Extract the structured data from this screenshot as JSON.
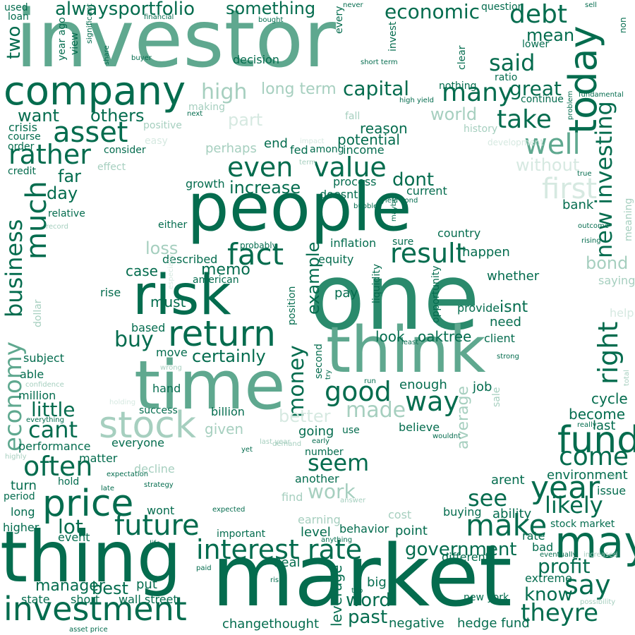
{
  "palette": {
    "dark": "#046c4e",
    "mid": "#2a8a6c",
    "light": "#5fa88f",
    "pale": "#a6cfbf",
    "faint": "#d6e9e1",
    "background": "#ffffff"
  },
  "words": [
    {
      "text": "investor",
      "shade": "light"
    },
    {
      "text": "people",
      "shade": "dark"
    },
    {
      "text": "market",
      "shade": "dark"
    },
    {
      "text": "one",
      "shade": "mid"
    },
    {
      "text": "thing",
      "shade": "dark"
    },
    {
      "text": "time",
      "shade": "light"
    },
    {
      "text": "risk",
      "shade": "dark"
    },
    {
      "text": "think",
      "shade": "light"
    },
    {
      "text": "company",
      "shade": "dark"
    },
    {
      "text": "today",
      "shade": "dark"
    },
    {
      "text": "return",
      "shade": "dark"
    },
    {
      "text": "investment",
      "shade": "dark"
    },
    {
      "text": "price",
      "shade": "dark"
    },
    {
      "text": "stock",
      "shade": "pale"
    },
    {
      "text": "may",
      "shade": "dark"
    },
    {
      "text": "year",
      "shade": "dark"
    },
    {
      "text": "fund",
      "shade": "dark"
    },
    {
      "text": "make",
      "shade": "dark"
    },
    {
      "text": "future",
      "shade": "dark"
    },
    {
      "text": "interest rate",
      "shade": "dark"
    },
    {
      "text": "even",
      "shade": "dark"
    },
    {
      "text": "value",
      "shade": "dark"
    },
    {
      "text": "asset",
      "shade": "dark"
    },
    {
      "text": "rather",
      "shade": "dark"
    },
    {
      "text": "fact",
      "shade": "dark"
    },
    {
      "text": "result",
      "shade": "dark"
    },
    {
      "text": "good",
      "shade": "dark"
    },
    {
      "text": "way",
      "shade": "dark"
    },
    {
      "text": "often",
      "shade": "dark"
    },
    {
      "text": "say",
      "shade": "dark"
    },
    {
      "text": "theyre",
      "shade": "dark"
    },
    {
      "text": "come",
      "shade": "dark"
    },
    {
      "text": "likely",
      "shade": "dark"
    },
    {
      "text": "see",
      "shade": "dark"
    },
    {
      "text": "seem",
      "shade": "dark"
    },
    {
      "text": "many",
      "shade": "dark"
    },
    {
      "text": "take",
      "shade": "dark"
    },
    {
      "text": "well",
      "shade": "light"
    },
    {
      "text": "first",
      "shade": "faint"
    },
    {
      "text": "debt",
      "shade": "dark"
    },
    {
      "text": "said",
      "shade": "dark"
    },
    {
      "text": "high",
      "shade": "pale"
    },
    {
      "text": "capital",
      "shade": "dark"
    },
    {
      "text": "economic",
      "shade": "dark"
    },
    {
      "text": "alwaysportfolio",
      "shade": "dark"
    },
    {
      "text": "something",
      "shade": "dark"
    },
    {
      "text": "much",
      "shade": "dark"
    },
    {
      "text": "business",
      "shade": "dark"
    },
    {
      "text": "economy",
      "shade": "light"
    },
    {
      "text": "new investing",
      "shade": "dark"
    },
    {
      "text": "right",
      "shade": "dark"
    },
    {
      "text": "money",
      "shade": "dark"
    },
    {
      "text": "buy",
      "shade": "dark"
    },
    {
      "text": "certainly",
      "shade": "dark"
    },
    {
      "text": "cant",
      "shade": "dark"
    },
    {
      "text": "little",
      "shade": "dark"
    },
    {
      "text": "lot",
      "shade": "dark"
    },
    {
      "text": "made",
      "shade": "pale"
    },
    {
      "text": "work",
      "shade": "pale"
    },
    {
      "text": "manager",
      "shade": "dark"
    },
    {
      "text": "best",
      "shade": "dark"
    },
    {
      "text": "word",
      "shade": "dark"
    },
    {
      "text": "past",
      "shade": "dark"
    },
    {
      "text": "profit",
      "shade": "dark"
    },
    {
      "text": "know",
      "shade": "dark"
    },
    {
      "text": "government",
      "shade": "dark"
    },
    {
      "text": "increase",
      "shade": "dark"
    },
    {
      "text": "dont",
      "shade": "dark"
    },
    {
      "text": "great",
      "shade": "dark"
    },
    {
      "text": "mean",
      "shade": "dark"
    },
    {
      "text": "want",
      "shade": "dark"
    },
    {
      "text": "others",
      "shade": "dark"
    },
    {
      "text": "far",
      "shade": "dark"
    },
    {
      "text": "day",
      "shade": "dark"
    },
    {
      "text": "two",
      "shade": "dark"
    },
    {
      "text": "case",
      "shade": "dark"
    },
    {
      "text": "memo",
      "shade": "dark"
    },
    {
      "text": "loss",
      "shade": "pale"
    },
    {
      "text": "example",
      "shade": "dark"
    },
    {
      "text": "must",
      "shade": "dark"
    },
    {
      "text": "long term",
      "shade": "pale"
    },
    {
      "text": "part",
      "shade": "faint"
    },
    {
      "text": "world",
      "shade": "pale"
    },
    {
      "text": "without",
      "shade": "faint"
    },
    {
      "text": "reason",
      "shade": "dark"
    },
    {
      "text": "potential",
      "shade": "dark"
    },
    {
      "text": "end",
      "shade": "dark"
    },
    {
      "text": "perhaps",
      "shade": "pale"
    },
    {
      "text": "bond",
      "shade": "pale"
    },
    {
      "text": "bank",
      "shade": "dark"
    },
    {
      "text": "happen",
      "shade": "dark"
    },
    {
      "text": "whether",
      "shade": "dark"
    },
    {
      "text": "isnt",
      "shade": "dark"
    },
    {
      "text": "need",
      "shade": "dark"
    },
    {
      "text": "client",
      "shade": "dark"
    },
    {
      "text": "oaktree",
      "shade": "dark"
    },
    {
      "text": "look",
      "shade": "dark"
    },
    {
      "text": "enough",
      "shade": "dark"
    },
    {
      "text": "job",
      "shade": "dark"
    },
    {
      "text": "average",
      "shade": "pale"
    },
    {
      "text": "cycle",
      "shade": "dark"
    },
    {
      "text": "become",
      "shade": "dark"
    },
    {
      "text": "last",
      "shade": "dark"
    },
    {
      "text": "environment",
      "shade": "dark"
    },
    {
      "text": "arent",
      "shade": "dark"
    },
    {
      "text": "ability",
      "shade": "dark"
    },
    {
      "text": "buying",
      "shade": "dark"
    },
    {
      "text": "point",
      "shade": "dark"
    },
    {
      "text": "rate",
      "shade": "dark"
    },
    {
      "text": "bad",
      "shade": "dark"
    },
    {
      "text": "stock market",
      "shade": "dark"
    },
    {
      "text": "issue",
      "shade": "dark"
    },
    {
      "text": "extreme",
      "shade": "dark"
    },
    {
      "text": "different",
      "shade": "dark"
    },
    {
      "text": "new york",
      "shade": "dark"
    },
    {
      "text": "negative",
      "shade": "dark"
    },
    {
      "text": "hedge fund",
      "shade": "dark"
    },
    {
      "text": "changethought",
      "shade": "dark"
    },
    {
      "text": "leverage",
      "shade": "dark"
    },
    {
      "text": "big",
      "shade": "dark"
    },
    {
      "text": "level",
      "shade": "dark"
    },
    {
      "text": "deal",
      "shade": "dark"
    },
    {
      "text": "important",
      "shade": "dark"
    },
    {
      "text": "put",
      "shade": "dark"
    },
    {
      "text": "wall street",
      "shade": "dark"
    },
    {
      "text": "short",
      "shade": "dark"
    },
    {
      "text": "state",
      "shade": "dark"
    },
    {
      "text": "event",
      "shade": "dark"
    },
    {
      "text": "higher",
      "shade": "dark"
    },
    {
      "text": "long",
      "shade": "dark"
    },
    {
      "text": "period",
      "shade": "dark"
    },
    {
      "text": "turn",
      "shade": "dark"
    },
    {
      "text": "hold",
      "shade": "dark"
    },
    {
      "text": "matter",
      "shade": "dark"
    },
    {
      "text": "performance",
      "shade": "dark"
    },
    {
      "text": "million",
      "shade": "dark"
    },
    {
      "text": "able",
      "shade": "dark"
    },
    {
      "text": "subject",
      "shade": "dark"
    },
    {
      "text": "hand",
      "shade": "dark"
    },
    {
      "text": "move",
      "shade": "dark"
    },
    {
      "text": "based",
      "shade": "dark"
    },
    {
      "text": "wont",
      "shade": "dark"
    },
    {
      "text": "decline",
      "shade": "pale"
    },
    {
      "text": "everyone",
      "shade": "dark"
    },
    {
      "text": "given",
      "shade": "pale"
    },
    {
      "text": "billion",
      "shade": "dark"
    },
    {
      "text": "success",
      "shade": "dark"
    },
    {
      "text": "better",
      "shade": "faint"
    },
    {
      "text": "going",
      "shade": "dark"
    },
    {
      "text": "number",
      "shade": "dark"
    },
    {
      "text": "another",
      "shade": "dark"
    },
    {
      "text": "find",
      "shade": "pale"
    },
    {
      "text": "cost",
      "shade": "pale"
    },
    {
      "text": "believe",
      "shade": "dark"
    },
    {
      "text": "provide",
      "shade": "dark"
    },
    {
      "text": "pay",
      "shade": "dark"
    },
    {
      "text": "equity",
      "shade": "dark"
    },
    {
      "text": "inflation",
      "shade": "dark"
    },
    {
      "text": "country",
      "shade": "dark"
    },
    {
      "text": "described",
      "shade": "dark"
    },
    {
      "text": "american",
      "shade": "dark"
    },
    {
      "text": "position",
      "shade": "dark"
    },
    {
      "text": "second",
      "shade": "dark"
    },
    {
      "text": "opportunity",
      "shade": "dark"
    },
    {
      "text": "liquidity",
      "shade": "dark"
    },
    {
      "text": "current",
      "shade": "dark"
    },
    {
      "text": "doesnt",
      "shade": "dark"
    },
    {
      "text": "process",
      "shade": "dark"
    },
    {
      "text": "growth",
      "shade": "dark"
    },
    {
      "text": "fed",
      "shade": "dark"
    },
    {
      "text": "among",
      "shade": "dark"
    },
    {
      "text": "income",
      "shade": "dark"
    },
    {
      "text": "decision",
      "shade": "dark"
    },
    {
      "text": "making",
      "shade": "pale"
    },
    {
      "text": "positive",
      "shade": "pale"
    },
    {
      "text": "consider",
      "shade": "dark"
    },
    {
      "text": "course",
      "shade": "dark"
    },
    {
      "text": "crisis",
      "shade": "dark"
    },
    {
      "text": "order",
      "shade": "dark"
    },
    {
      "text": "credit",
      "shade": "dark"
    },
    {
      "text": "relative",
      "shade": "dark"
    },
    {
      "text": "effect",
      "shade": "pale"
    },
    {
      "text": "easy",
      "shade": "faint"
    },
    {
      "text": "either",
      "shade": "dark"
    },
    {
      "text": "probably",
      "shade": "dark"
    },
    {
      "text": "sure",
      "shade": "dark"
    },
    {
      "text": "used",
      "shade": "dark"
    },
    {
      "text": "loan",
      "shade": "dark"
    },
    {
      "text": "year ago",
      "shade": "dark"
    },
    {
      "text": "view",
      "shade": "dark"
    },
    {
      "text": "significant",
      "shade": "dark"
    },
    {
      "text": "share",
      "shade": "dark"
    },
    {
      "text": "buyer",
      "shade": "dark"
    },
    {
      "text": "bought",
      "shade": "dark"
    },
    {
      "text": "financial",
      "shade": "dark"
    },
    {
      "text": "every",
      "shade": "dark"
    },
    {
      "text": "invest",
      "shade": "dark"
    },
    {
      "text": "never",
      "shade": "dark"
    },
    {
      "text": "short term",
      "shade": "dark"
    },
    {
      "text": "clear",
      "shade": "dark"
    },
    {
      "text": "question",
      "shade": "dark"
    },
    {
      "text": "lower",
      "shade": "dark"
    },
    {
      "text": "sell",
      "shade": "dark"
    },
    {
      "text": "nothing",
      "shade": "dark"
    },
    {
      "text": "ratio",
      "shade": "dark"
    },
    {
      "text": "continue",
      "shade": "dark"
    },
    {
      "text": "fundamental",
      "shade": "dark"
    },
    {
      "text": "problem",
      "shade": "dark"
    },
    {
      "text": "non",
      "shade": "dark"
    },
    {
      "text": "fall",
      "shade": "pale"
    },
    {
      "text": "high yield",
      "shade": "dark"
    },
    {
      "text": "history",
      "shade": "pale"
    },
    {
      "text": "development",
      "shade": "faint"
    },
    {
      "text": "impact",
      "shade": "faint"
    },
    {
      "text": "term",
      "shade": "pale"
    },
    {
      "text": "next",
      "shade": "dark"
    },
    {
      "text": "true",
      "shade": "dark"
    },
    {
      "text": "meaning",
      "shade": "pale"
    },
    {
      "text": "bubble",
      "shade": "dark"
    },
    {
      "text": "yield bond",
      "shade": "dark"
    },
    {
      "text": "maybe",
      "shade": "dark"
    },
    {
      "text": "outcome",
      "shade": "dark"
    },
    {
      "text": "rising",
      "shade": "dark"
    },
    {
      "text": "saying",
      "shade": "pale"
    },
    {
      "text": "help",
      "shade": "faint"
    },
    {
      "text": "dollar",
      "shade": "pale"
    },
    {
      "text": "rise",
      "shade": "dark"
    },
    {
      "text": "especially",
      "shade": "faint"
    },
    {
      "text": "wrong",
      "shade": "pale"
    },
    {
      "text": "least",
      "shade": "dark"
    },
    {
      "text": "strong",
      "shade": "dark"
    },
    {
      "text": "run",
      "shade": "dark"
    },
    {
      "text": "try",
      "shade": "dark"
    },
    {
      "text": "confidence",
      "shade": "pale"
    },
    {
      "text": "holding",
      "shade": "faint"
    },
    {
      "text": "everything",
      "shade": "dark"
    },
    {
      "text": "highly",
      "shade": "pale"
    },
    {
      "text": "expectation",
      "shade": "dark"
    },
    {
      "text": "late",
      "shade": "dark"
    },
    {
      "text": "strategy",
      "shade": "dark"
    },
    {
      "text": "expected",
      "shade": "dark"
    },
    {
      "text": "earning",
      "shade": "pale"
    },
    {
      "text": "behavior",
      "shade": "dark"
    },
    {
      "text": "answer",
      "shade": "pale"
    },
    {
      "text": "tell",
      "shade": "pale"
    },
    {
      "text": "total",
      "shade": "pale"
    },
    {
      "text": "really",
      "shade": "dark"
    },
    {
      "text": "sale",
      "shade": "pale"
    },
    {
      "text": "use",
      "shade": "dark"
    },
    {
      "text": "last year",
      "shade": "pale"
    },
    {
      "text": "demand",
      "shade": "pale"
    },
    {
      "text": "early",
      "shade": "dark"
    },
    {
      "text": "wouldnt",
      "shade": "dark"
    },
    {
      "text": "yet",
      "shade": "dark"
    },
    {
      "text": "record",
      "shade": "pale"
    },
    {
      "text": "increased",
      "shade": "pale"
    },
    {
      "text": "eventually",
      "shade": "dark"
    },
    {
      "text": "possibility",
      "shade": "pale"
    },
    {
      "text": "paid",
      "shade": "dark"
    },
    {
      "text": "risky",
      "shade": "dark"
    },
    {
      "text": "top",
      "shade": "dark"
    },
    {
      "text": "anything",
      "shade": "dark"
    },
    {
      "text": "life",
      "shade": "dark"
    },
    {
      "text": "asset price",
      "shade": "dark"
    },
    {
      "text": "rule",
      "shade": "dark"
    },
    {
      "text": "prospective return",
      "shade": "dark"
    }
  ]
}
